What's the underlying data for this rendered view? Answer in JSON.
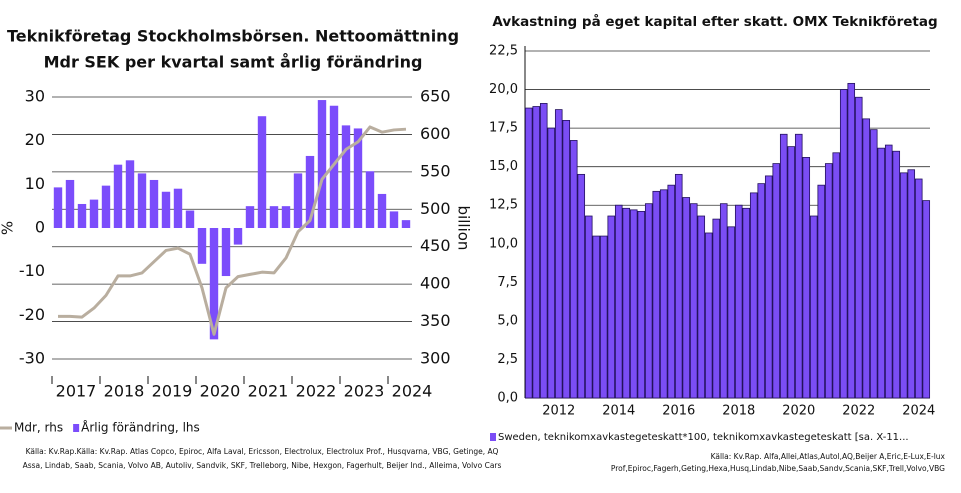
{
  "chart_data": [
    {
      "type": "bar",
      "title": [
        "Teknikföretag Stockholmsbörsen. Nettoomättning",
        "Mdr SEK per kvartal samt årlig förändring"
      ],
      "ylabel": "%",
      "y2label": "billion",
      "categories": [
        "2017",
        null,
        null,
        null,
        "2018",
        null,
        null,
        null,
        "2019",
        null,
        null,
        null,
        "2020",
        null,
        null,
        null,
        "2021",
        null,
        null,
        null,
        "2022",
        null,
        null,
        null,
        "2023",
        null,
        null,
        null,
        "2024",
        null
      ],
      "series": [
        {
          "name": "Mdr, rhs",
          "type": "line",
          "axis": "y2",
          "color": "#b9ae9f",
          "values": [
            357,
            357,
            356,
            368,
            385,
            411,
            411,
            415,
            430,
            445,
            448,
            440,
            395,
            333,
            395,
            410,
            413,
            416,
            415,
            435,
            470,
            485,
            540,
            560,
            580,
            590,
            610,
            603,
            606,
            607
          ]
        },
        {
          "name": "Årlig förändring, lhs",
          "color": "#7b4dfb",
          "values": [
            9.3,
            11,
            5.5,
            6.5,
            9.7,
            14.5,
            15.5,
            12.5,
            11,
            8.3,
            9,
            4,
            -8.2,
            -25.5,
            -11,
            -3.8,
            5,
            25.6,
            5,
            5,
            12.5,
            16.5,
            29.3,
            28,
            23.5,
            22.8,
            13,
            7.8,
            3.8,
            1.8
          ]
        }
      ],
      "ylim": [
        -30,
        30
      ],
      "yticks": [
        -30,
        -20,
        -10,
        0,
        10,
        20,
        30
      ],
      "y2lim": [
        300,
        650
      ],
      "y2ticks": [
        300,
        350,
        400,
        450,
        500,
        550,
        600,
        650
      ],
      "grid": "y2",
      "source": [
        "Källa: Kv.Rap.Källa: Kv.Rap. Atlas Copco, Epiroc, Alfa Laval, Ericsson, Electrolux, Electrolux Prof., Husqvarna, VBG, Getinge, AQ",
        "Assa, Lindab, Saab, Scania, Volvo AB, Autoliv, Sandvik, SKF, Trelleborg, Nibe, Hexgon, Fagerhult, Beijer Ind., Alleima, Volvo Cars"
      ]
    },
    {
      "type": "bar",
      "title": [
        "Avkastning på eget kapital efter skatt. OMX Teknikföretag"
      ],
      "categories": [
        null,
        null,
        null,
        null,
        "2012",
        null,
        null,
        null,
        null,
        null,
        null,
        null,
        "2014",
        null,
        null,
        null,
        null,
        null,
        null,
        null,
        "2016",
        null,
        null,
        null,
        null,
        null,
        null,
        null,
        "2018",
        null,
        null,
        null,
        null,
        null,
        null,
        null,
        "2020",
        null,
        null,
        null,
        null,
        null,
        null,
        null,
        "2022",
        null,
        null,
        null,
        null,
        null,
        null,
        null,
        "2024",
        null
      ],
      "series": [
        {
          "name": "Sweden, teknikomxavkastegeteskatt*100, teknikomxavkastegeteskatt [sa. X-11...",
          "color": "#7b4df5",
          "values": [
            18.8,
            18.9,
            19.1,
            17.5,
            18.7,
            18.0,
            16.7,
            14.5,
            11.8,
            10.5,
            10.5,
            11.8,
            12.5,
            12.3,
            12.2,
            12.1,
            12.6,
            13.4,
            13.5,
            13.8,
            14.5,
            13.0,
            12.6,
            11.8,
            10.7,
            11.6,
            12.6,
            11.1,
            12.5,
            12.3,
            13.3,
            13.9,
            14.4,
            15.2,
            17.1,
            16.3,
            17.1,
            15.6,
            11.8,
            13.8,
            15.2,
            15.9,
            20.0,
            20.4,
            19.5,
            18.1,
            17.4,
            16.2,
            16.4,
            16.0,
            14.6,
            14.8,
            14.2,
            12.8
          ]
        }
      ],
      "ylim": [
        0,
        22.5
      ],
      "yticks": [
        {
          "value": 0,
          "label": "0,0"
        },
        {
          "value": 2.5,
          "label": "2,5"
        },
        {
          "value": 5,
          "label": "5,0"
        },
        {
          "value": 7.5,
          "label": "7,5"
        },
        {
          "value": 10,
          "label": "10,0"
        },
        {
          "value": 12.5,
          "label": "12,5"
        },
        {
          "value": 15,
          "label": "15,0"
        },
        {
          "value": 17.5,
          "label": "17,5"
        },
        {
          "value": 20,
          "label": "20,0"
        },
        {
          "value": 22.5,
          "label": "22,5"
        }
      ],
      "grid": "y",
      "source": [
        "Källa: Kv.Rap. Alfa,Allei,Atlas,Autol,AQ,Beijer A,Eric,E-Lux,E-lux",
        "Prof,Epiroc,Fagerh,Geting,Hexa,Husq,Lindab,Nibe,Saab,Sandv,Scania,SKF,Trell,Volvo,VBG"
      ]
    }
  ]
}
